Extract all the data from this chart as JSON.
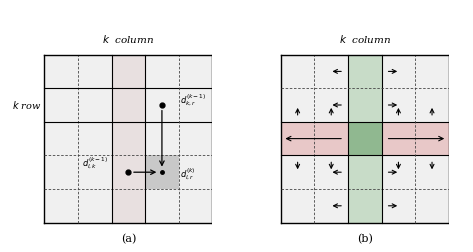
{
  "fig_width": 4.73,
  "fig_height": 2.52,
  "dpi": 100,
  "bg_color": "#ffffff",
  "n": 5,
  "kc_a": 2,
  "kr_a": 3,
  "lr_a": 1,
  "rc_a": 3,
  "kc_b": 2,
  "kr_b": 2,
  "title_a": "$k$  column",
  "title_b": "$k$  column",
  "row_label": "$k$ row",
  "annot_dkr": "$d_{k,r}^{(k-1)}$",
  "annot_dlk": "$d_{l,k}^{(k-1)}$",
  "annot_dlr": "$d_{l,r}^{(k)}$",
  "label_a": "(a)",
  "label_b": "(b)"
}
